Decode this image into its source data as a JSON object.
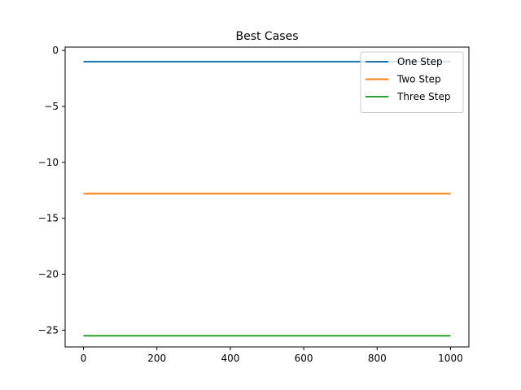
{
  "chart_data": {
    "type": "line",
    "title": "Best Cases",
    "xlabel": "",
    "ylabel": "",
    "xlim": [
      -50,
      1050
    ],
    "ylim": [
      -26.5,
      0.3
    ],
    "xticks": [
      0,
      200,
      400,
      600,
      800,
      1000
    ],
    "yticks": [
      0,
      -5,
      -10,
      -15,
      -20,
      -25
    ],
    "grid": false,
    "legend_position": "top-right",
    "series": [
      {
        "name": "One Step",
        "color": "#1f77b4",
        "x": [
          0,
          1000
        ],
        "y": [
          -1.0,
          -1.0
        ]
      },
      {
        "name": "Two Step",
        "color": "#ff7f0e",
        "x": [
          0,
          1000
        ],
        "y": [
          -12.8,
          -12.8
        ]
      },
      {
        "name": "Three Step",
        "color": "#2ca02c",
        "x": [
          0,
          1000
        ],
        "y": [
          -25.5,
          -25.5
        ]
      }
    ]
  }
}
